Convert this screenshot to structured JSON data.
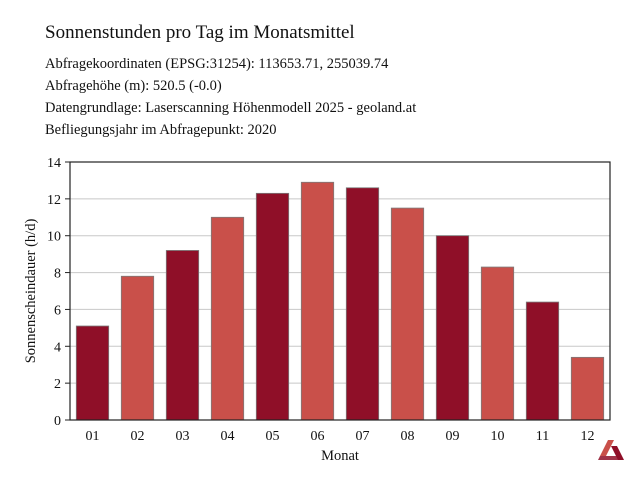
{
  "header": {
    "title": "Sonnenstunden pro Tag im Monatsmittel",
    "lines": [
      "Abfragekoordinaten (EPSG:31254): 113653.71, 255039.74",
      "Abfragehöhe (m): 520.5 (-0.0)",
      "Datengrundlage: Laserscanning Höhenmodell 2025 - geoland.at",
      "Befliegungsjahr im Abfragepunkt: 2020"
    ]
  },
  "chart_data": {
    "type": "bar",
    "categories": [
      "01",
      "02",
      "03",
      "04",
      "05",
      "06",
      "07",
      "08",
      "09",
      "10",
      "11",
      "12"
    ],
    "values": [
      5.1,
      7.8,
      9.2,
      11.0,
      12.3,
      12.9,
      12.6,
      11.5,
      10.0,
      8.3,
      6.4,
      3.4
    ],
    "xlabel": "Monat",
    "ylabel": "Sonnenscheindauer (h/d)",
    "ylim": [
      0,
      14
    ],
    "yticks": [
      0,
      2,
      4,
      6,
      8,
      10,
      12,
      14
    ],
    "grid": true,
    "colors": [
      "#8f0f28",
      "#c9504a"
    ]
  },
  "logo": {
    "icon": "brand-logo-icon",
    "colors": [
      "#c9504a",
      "#8f0f28"
    ]
  }
}
